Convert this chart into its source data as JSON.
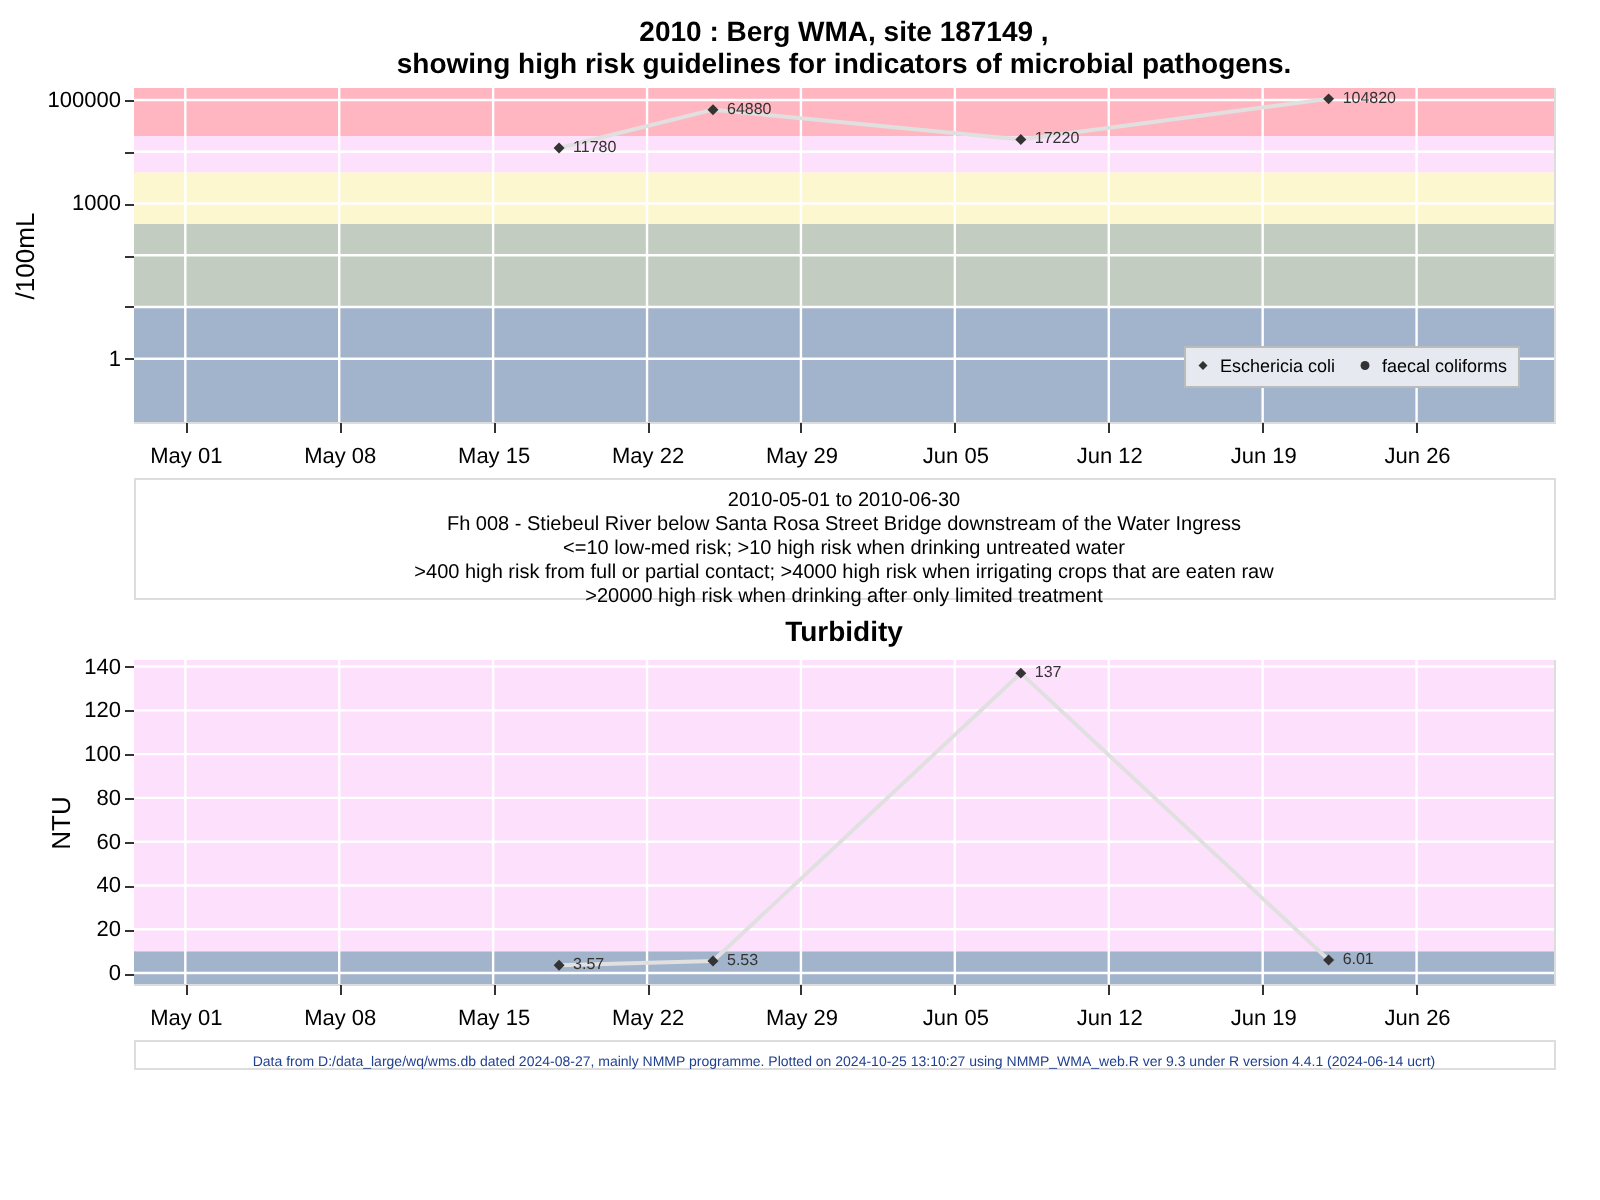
{
  "chart_data": [
    {
      "type": "line",
      "title": "2010 : Berg WMA, site 187149 ,\nshowing high risk guidelines for indicators of microbial pathogens.",
      "ylabel": "/100mL",
      "x": [
        "2010-05-18",
        "2010-05-25",
        "2010-06-08",
        "2010-06-22"
      ],
      "series": [
        {
          "name": "Eschericia coli",
          "color": "#333333",
          "marker": "diamond",
          "values": [
            11780,
            64880,
            17220,
            104820
          ]
        },
        {
          "name": "faecal coliforms",
          "color": "#333333",
          "marker": "circle",
          "values": [
            null,
            null,
            null,
            null
          ]
        }
      ],
      "data_labels": true,
      "log": "y",
      "grid": true,
      "legend": "bottom right",
      "xlim": [
        "2010-04-28T16:00",
        "2010-07-02T06:00"
      ],
      "xticks": [
        {
          "value": "2010-05-01",
          "label": "May 01"
        },
        {
          "value": "2010-05-08",
          "label": "May 08"
        },
        {
          "value": "2010-05-15",
          "label": "May 15"
        },
        {
          "value": "2010-05-22",
          "label": "May 22"
        },
        {
          "value": "2010-05-29",
          "label": "May 29"
        },
        {
          "value": "2010-06-05",
          "label": "Jun 05"
        },
        {
          "value": "2010-06-12",
          "label": "Jun 12"
        },
        {
          "value": "2010-06-19",
          "label": "Jun 19"
        },
        {
          "value": "2010-06-26",
          "label": "Jun 26"
        }
      ],
      "ylim": [
        0.06,
        170000
      ],
      "yticks": [
        1,
        {
          "value": 10,
          "label": null
        },
        {
          "value": 100,
          "label": null
        },
        1000,
        {
          "value": 10000,
          "label": null
        },
        100000
      ],
      "bands": [
        {
          "axis": "y",
          "from": 0.06,
          "to": 10,
          "color": "#a2b3cc"
        },
        {
          "axis": "y",
          "from": 10,
          "to": 400,
          "color": "#c3ccc0"
        },
        {
          "axis": "y",
          "from": 400,
          "to": 4000,
          "color": "#fdf7cf"
        },
        {
          "axis": "y",
          "from": 4000,
          "to": 20000,
          "color": "#fde0fb"
        },
        {
          "axis": "y",
          "from": 20000,
          "to": 170000,
          "color": "#ffb6c1"
        }
      ],
      "annotations": [
        "2010-05-01 to 2010-06-30",
        "Fh 008 - Stiebeul River below Santa Rosa Street Bridge downstream of the Water Ingress",
        "<=10 low-med risk; >10 high risk when drinking untreated water",
        ">400 high risk from full or partial contact; >4000 high risk when irrigating crops that are eaten raw",
        ">20000 high risk when drinking after only limited treatment"
      ]
    },
    {
      "type": "line",
      "title": "Turbidity",
      "ylabel": "NTU",
      "x": [
        "2010-05-18",
        "2010-05-25",
        "2010-06-08",
        "2010-06-22"
      ],
      "series": [
        {
          "color": "#333333",
          "marker": "diamond",
          "values": [
            3.57,
            5.53,
            137,
            6.01
          ]
        }
      ],
      "data_labels": true,
      "grid": true,
      "xlim": [
        "2010-04-28T16:00",
        "2010-07-02T06:00"
      ],
      "xticks": [
        {
          "value": "2010-05-01",
          "label": "May 01"
        },
        {
          "value": "2010-05-08",
          "label": "May 08"
        },
        {
          "value": "2010-05-15",
          "label": "May 15"
        },
        {
          "value": "2010-05-22",
          "label": "May 22"
        },
        {
          "value": "2010-05-29",
          "label": "May 29"
        },
        {
          "value": "2010-06-05",
          "label": "Jun 05"
        },
        {
          "value": "2010-06-12",
          "label": "Jun 12"
        },
        {
          "value": "2010-06-19",
          "label": "Jun 19"
        },
        {
          "value": "2010-06-26",
          "label": "Jun 26"
        }
      ],
      "ylim": [
        -5,
        143
      ],
      "yticks": [
        0,
        20,
        40,
        60,
        80,
        100,
        120,
        140
      ],
      "bands": [
        {
          "axis": "y",
          "from": -5,
          "to": 10,
          "color": "#a2b3cc"
        },
        {
          "axis": "y",
          "from": 10,
          "to": 143,
          "color": "#fde0fb"
        }
      ],
      "annotations": [
        "Data from D:/data_large/wq/wms.db dated 2024-08-27, mainly NMMP programme. Plotted on 2024-10-25 13:10:27 using NMMP_WMA_web.R ver 9.3 under R version 4.4.1 (2024-06-14 ucrt)"
      ]
    }
  ]
}
